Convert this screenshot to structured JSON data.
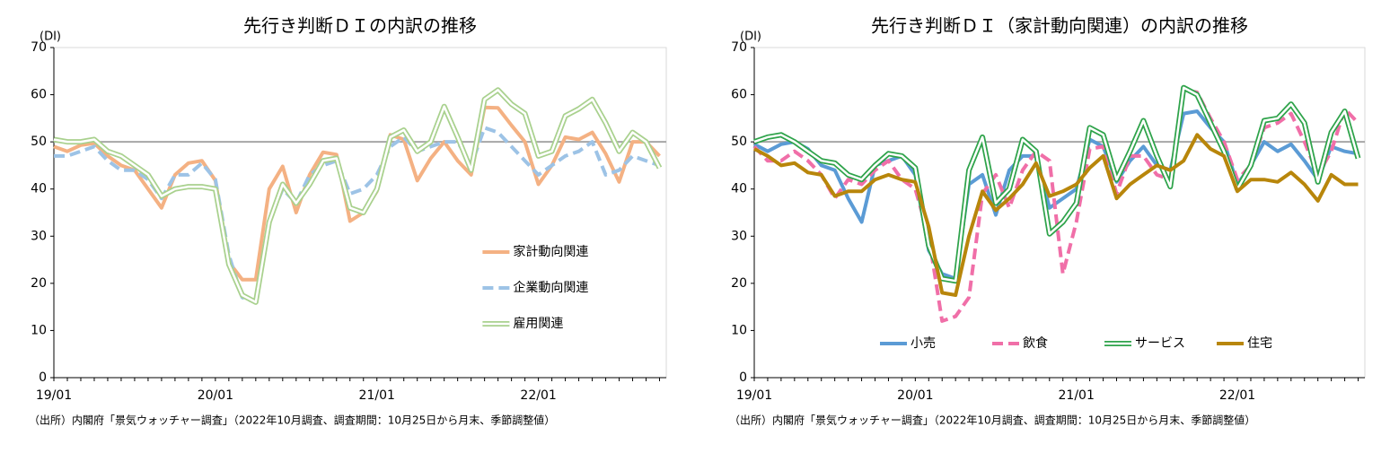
{
  "chart_data": [
    {
      "type": "line",
      "title": "先行き判断ＤＩの内訳の推移",
      "y_unit": "(DI)",
      "categories": [
        "19/01",
        null,
        null,
        null,
        null,
        null,
        null,
        null,
        null,
        null,
        null,
        null,
        "20/01",
        null,
        null,
        null,
        null,
        null,
        null,
        null,
        null,
        null,
        null,
        null,
        "21/01",
        null,
        null,
        null,
        null,
        null,
        null,
        null,
        null,
        null,
        null,
        null,
        "22/01",
        null,
        null,
        null,
        null,
        null,
        null,
        null,
        null,
        null
      ],
      "ylim": [
        0,
        70
      ],
      "yticks": [
        0,
        10,
        20,
        30,
        40,
        50,
        60,
        70
      ],
      "reference_line": 50,
      "legend": "lower right",
      "source": "（出所）内閣府「景気ウォッチャー調査」（2022年10月調査、調査期間：10月25日から月末、季節調整値）",
      "series": [
        {
          "name": "家計動向関連",
          "color": "#f4b183",
          "style": "solid",
          "values": [
            49,
            48,
            49.3,
            49.7,
            47,
            45,
            44,
            40,
            36,
            43,
            45.5,
            46,
            41.8,
            24.5,
            20.8,
            20.8,
            40,
            44.8,
            35,
            43,
            47.8,
            47.3,
            33.2,
            35,
            39.5,
            51.5,
            50.5,
            41.8,
            46.5,
            50,
            46,
            43,
            57.3,
            57.2,
            53.5,
            50,
            41,
            45,
            51,
            50.5,
            52,
            47.5,
            41.5,
            50,
            50,
            47
          ]
        },
        {
          "name": "企業動向関連",
          "color": "#9dc3e6",
          "style": "dashed",
          "values": [
            47,
            47,
            48,
            49,
            46,
            44,
            44,
            42,
            38,
            43,
            43,
            45.5,
            42,
            26,
            17,
            16,
            33,
            40,
            37,
            43,
            45,
            46,
            39,
            40,
            43,
            49,
            51,
            48,
            49,
            50,
            50,
            45,
            53,
            52,
            49,
            46,
            43,
            45,
            47,
            48,
            50,
            43,
            44,
            47,
            46,
            45
          ]
        },
        {
          "name": "雇用関連",
          "color": "#a9d18e",
          "style": "double",
          "values": [
            50.5,
            50,
            50,
            50.5,
            48,
            47,
            45,
            43,
            38.5,
            40,
            40.5,
            40.5,
            40,
            24,
            17.5,
            16,
            33,
            41,
            37,
            41,
            46,
            46.5,
            36,
            35,
            40,
            51,
            52.5,
            48,
            50,
            57.5,
            51,
            44,
            59,
            61,
            58,
            56,
            47,
            48,
            55.5,
            57,
            59,
            54,
            48,
            52,
            50,
            44.5
          ]
        }
      ]
    },
    {
      "type": "line",
      "title": "先行き判断ＤＩ（家計動向関連）の内訳の推移",
      "y_unit": "(DI)",
      "categories": [
        "19/01",
        null,
        null,
        null,
        null,
        null,
        null,
        null,
        null,
        null,
        null,
        null,
        "20/01",
        null,
        null,
        null,
        null,
        null,
        null,
        null,
        null,
        null,
        null,
        null,
        "21/01",
        null,
        null,
        null,
        null,
        null,
        null,
        null,
        null,
        null,
        null,
        null,
        "22/01",
        null,
        null,
        null,
        null,
        null,
        null,
        null,
        null,
        null
      ],
      "ylim": [
        0,
        70
      ],
      "yticks": [
        0,
        10,
        20,
        30,
        40,
        50,
        60,
        70
      ],
      "reference_line": 50,
      "legend": "lower center",
      "source": "（出所）内閣府「景気ウォッチャー調査」（2022年10月調査、調査期間：10月25日から月末、季節調整値）",
      "series": [
        {
          "name": "小売",
          "color": "#5b9bd5",
          "style": "solid",
          "values": [
            49.5,
            48,
            49.5,
            50,
            48.5,
            45,
            44,
            38,
            33,
            45,
            46,
            47,
            43,
            27,
            22,
            21,
            41,
            43,
            34.5,
            44,
            47,
            47,
            36,
            38,
            40,
            50.5,
            49,
            41.5,
            46,
            49,
            45,
            44,
            56,
            56.5,
            53,
            50,
            41,
            45,
            50,
            48,
            49.5,
            46,
            42,
            49,
            48,
            47.5
          ]
        },
        {
          "name": "飲食",
          "color": "#f06fa8",
          "style": "dashed",
          "values": [
            49,
            46,
            46,
            48,
            46,
            43,
            38,
            42,
            41,
            44,
            46,
            42,
            40,
            30,
            12,
            13,
            17,
            39,
            43,
            36,
            44,
            48,
            46,
            22,
            33,
            48.5,
            49,
            39,
            47,
            47,
            43,
            42,
            61,
            60.5,
            55,
            50,
            42,
            45,
            53,
            54,
            56,
            50,
            43,
            48,
            57,
            54
          ]
        },
        {
          "name": "サービス",
          "color": "#2ea34a",
          "style": "double",
          "values": [
            50,
            51,
            51.5,
            50,
            48,
            46,
            45.5,
            43,
            42,
            45,
            47.5,
            47,
            44.5,
            28,
            21,
            20.5,
            44,
            51,
            37,
            40,
            50.5,
            48,
            30.5,
            33,
            37,
            53,
            51.5,
            42,
            48,
            54.5,
            47,
            40.5,
            61.5,
            60,
            54,
            48,
            40,
            45,
            54.5,
            55,
            58,
            54,
            41.5,
            52,
            56.5,
            46.5
          ]
        },
        {
          "name": "住宅",
          "color": "#b8860b",
          "style": "solid",
          "values": [
            48.5,
            47,
            45,
            45.5,
            43.5,
            43,
            38.5,
            39.5,
            39.5,
            42,
            43,
            42,
            41.5,
            32,
            18,
            17.5,
            30,
            39.5,
            35.5,
            38,
            41,
            45.5,
            38.5,
            39.5,
            41,
            44.5,
            47,
            38,
            41,
            43,
            45,
            44,
            46,
            51.5,
            48.5,
            47,
            39.5,
            42,
            42,
            41.5,
            43.5,
            41,
            37.5,
            43,
            41,
            41
          ]
        }
      ]
    }
  ]
}
